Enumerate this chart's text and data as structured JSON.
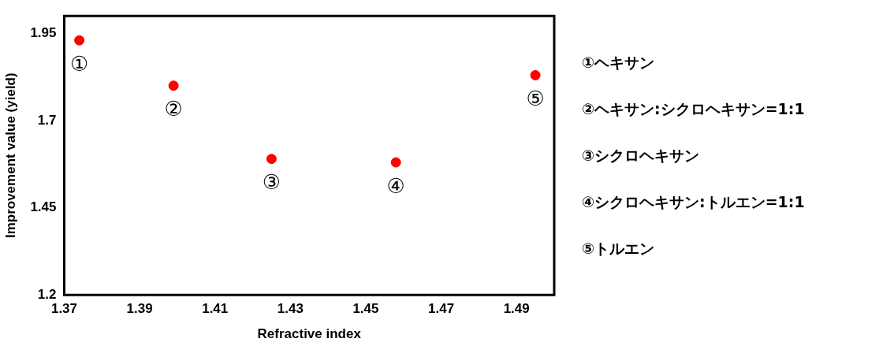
{
  "chart_data": {
    "type": "scatter",
    "xlabel": "Refractive index",
    "ylabel": "Improvement value (yield)",
    "x": [
      1.374,
      1.399,
      1.425,
      1.458,
      1.495
    ],
    "series": [
      {
        "color": "#ff0000",
        "values": [
          1.93,
          1.8,
          1.59,
          1.58,
          1.83
        ]
      }
    ],
    "xlim": [
      1.37,
      1.5
    ],
    "xticks": [
      1.37,
      1.39,
      1.41,
      1.43,
      1.45,
      1.47,
      1.49
    ],
    "ylim": [
      1.2,
      2.0
    ],
    "yticks": [
      1.2,
      1.45,
      1.7,
      1.95
    ],
    "grid": false,
    "legend": false,
    "marker": "circle",
    "annotations": [
      {
        "text": "①",
        "x": 1.374,
        "y": 1.93
      },
      {
        "text": "②",
        "x": 1.399,
        "y": 1.8
      },
      {
        "text": "③",
        "x": 1.425,
        "y": 1.59
      },
      {
        "text": "④",
        "x": 1.458,
        "y": 1.58
      },
      {
        "text": "⑤",
        "x": 1.495,
        "y": 1.83
      },
      "①ヘキサン",
      "②ヘキサン:シクロヘキサン=1:1",
      "③シクロヘキサン",
      "④シクロヘキサン:トルエン=1:1",
      "⑤トルエン"
    ]
  }
}
